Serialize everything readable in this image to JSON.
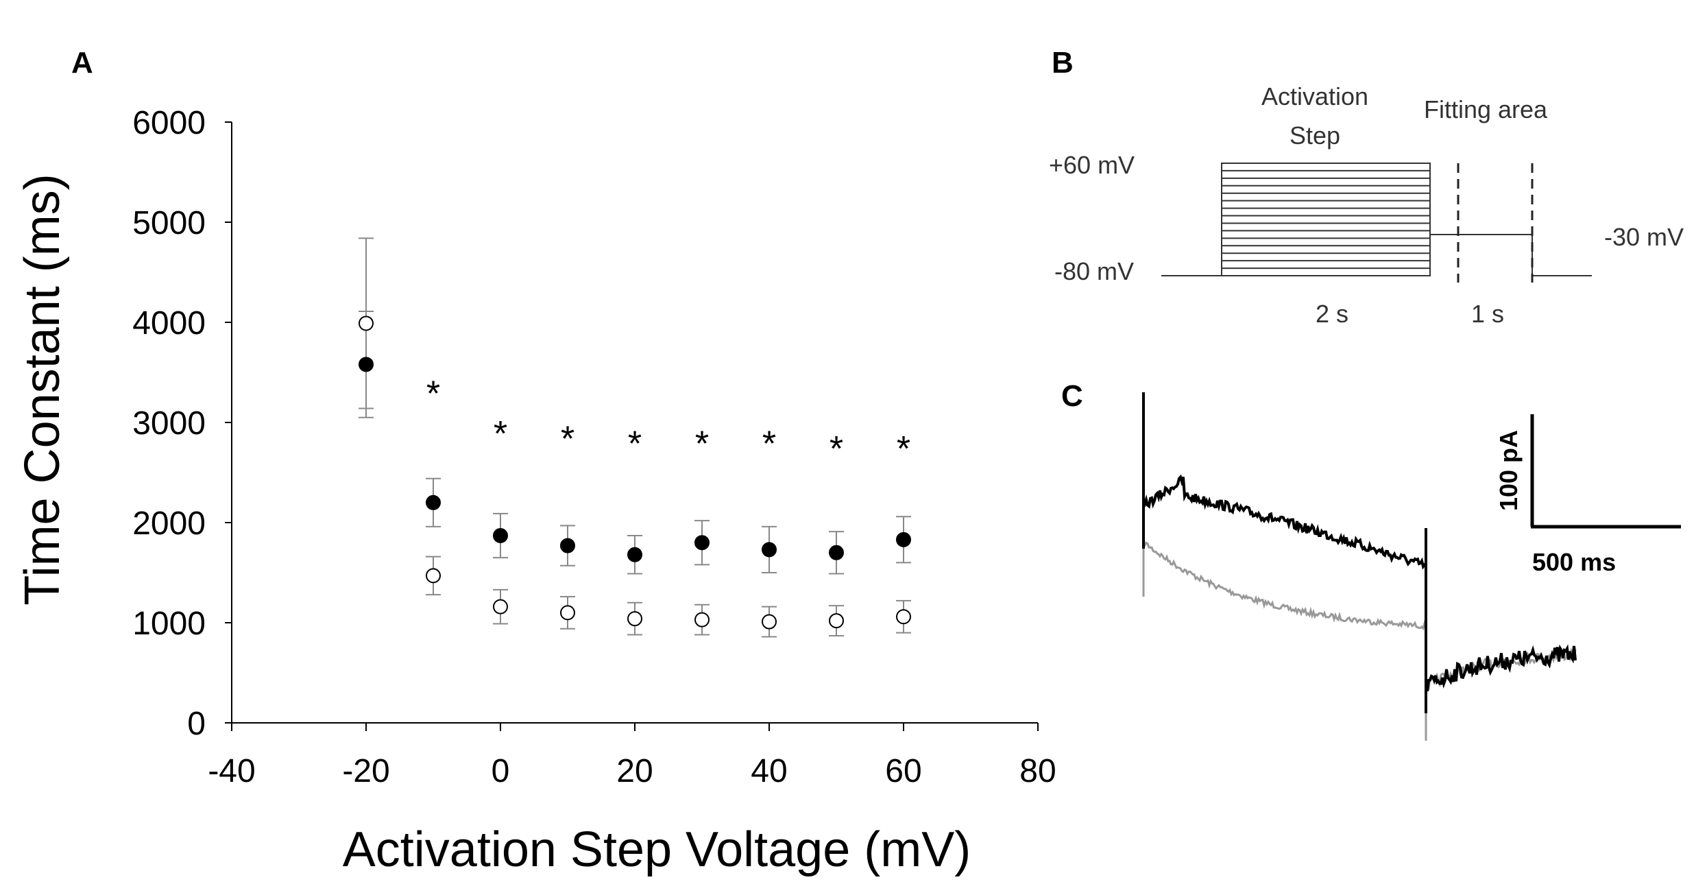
{
  "chart_data": [
    {
      "panel": "A",
      "type": "scatter",
      "ylabel": "Time Constant (ms)",
      "xlabel": "Activation Step Voltage (mV)",
      "xlim": [
        -40,
        80
      ],
      "ylim": [
        0,
        6000
      ],
      "x_ticks": [
        -40,
        -20,
        0,
        20,
        40,
        60,
        80
      ],
      "y_ticks": [
        0,
        1000,
        2000,
        3000,
        4000,
        5000,
        6000
      ],
      "grid": false,
      "series": [
        {
          "name": "filled",
          "marker": "filled-circle",
          "color": "#000000",
          "x": [
            -20,
            -10,
            0,
            10,
            20,
            30,
            40,
            50,
            60
          ],
          "y": [
            3580,
            2200,
            1870,
            1770,
            1680,
            1800,
            1730,
            1700,
            1830
          ],
          "error": [
            530,
            240,
            220,
            200,
            190,
            220,
            230,
            210,
            230
          ]
        },
        {
          "name": "open",
          "marker": "open-circle",
          "color": "#000000",
          "x": [
            -20,
            -10,
            0,
            10,
            20,
            30,
            40,
            50,
            60
          ],
          "y": [
            3990,
            1470,
            1160,
            1100,
            1040,
            1030,
            1010,
            1020,
            1060
          ],
          "error": [
            850,
            190,
            170,
            160,
            160,
            150,
            150,
            150,
            160
          ]
        }
      ],
      "significance": {
        "symbol": "*",
        "x": [
          -10,
          0,
          10,
          20,
          30,
          40,
          50,
          60
        ],
        "y": [
          3400,
          3000,
          2950,
          2900,
          2900,
          2900,
          2850,
          2850
        ]
      }
    }
  ],
  "panels": {
    "a": {
      "letter": "A"
    },
    "b": {
      "letter": "B",
      "activation_step_line1": "Activation",
      "activation_step_line2": "Step",
      "fitting_area": "Fitting area",
      "v_plus60": "+60 mV",
      "v_minus80": "-80 mV",
      "v_minus30": "-30 mV",
      "t_2s": "2 s",
      "t_1s": "1 s"
    },
    "c": {
      "letter": "C",
      "scale_current": "100 pA",
      "scale_time": "500 ms",
      "trace_colors": {
        "black": "#000000",
        "gray": "#999999"
      }
    }
  }
}
